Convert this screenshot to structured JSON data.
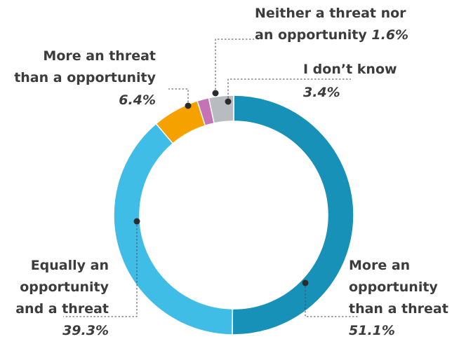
{
  "chart_data": {
    "type": "pie",
    "variant": "donut",
    "slices": [
      {
        "label": [
          "More an",
          "opportunity",
          "than a threat"
        ],
        "value": 51.1,
        "display": "51.1%",
        "color": "#1791b8"
      },
      {
        "label": [
          "Equally an",
          "opportunity",
          "and a threat"
        ],
        "value": 39.3,
        "display": "39.3%",
        "color": "#40bde6"
      },
      {
        "label": [
          "More an threat",
          "than a opportunity"
        ],
        "value": 6.4,
        "display": "6.4%",
        "color": "#f5a100"
      },
      {
        "label": [
          "Neither a threat nor",
          "an opportunity"
        ],
        "value": 1.6,
        "display": "1.6%",
        "color": "#c474b4"
      },
      {
        "label": [
          "I don’t know"
        ],
        "value": 3.4,
        "display": "3.4%",
        "color": "#b8bbbf"
      }
    ]
  }
}
